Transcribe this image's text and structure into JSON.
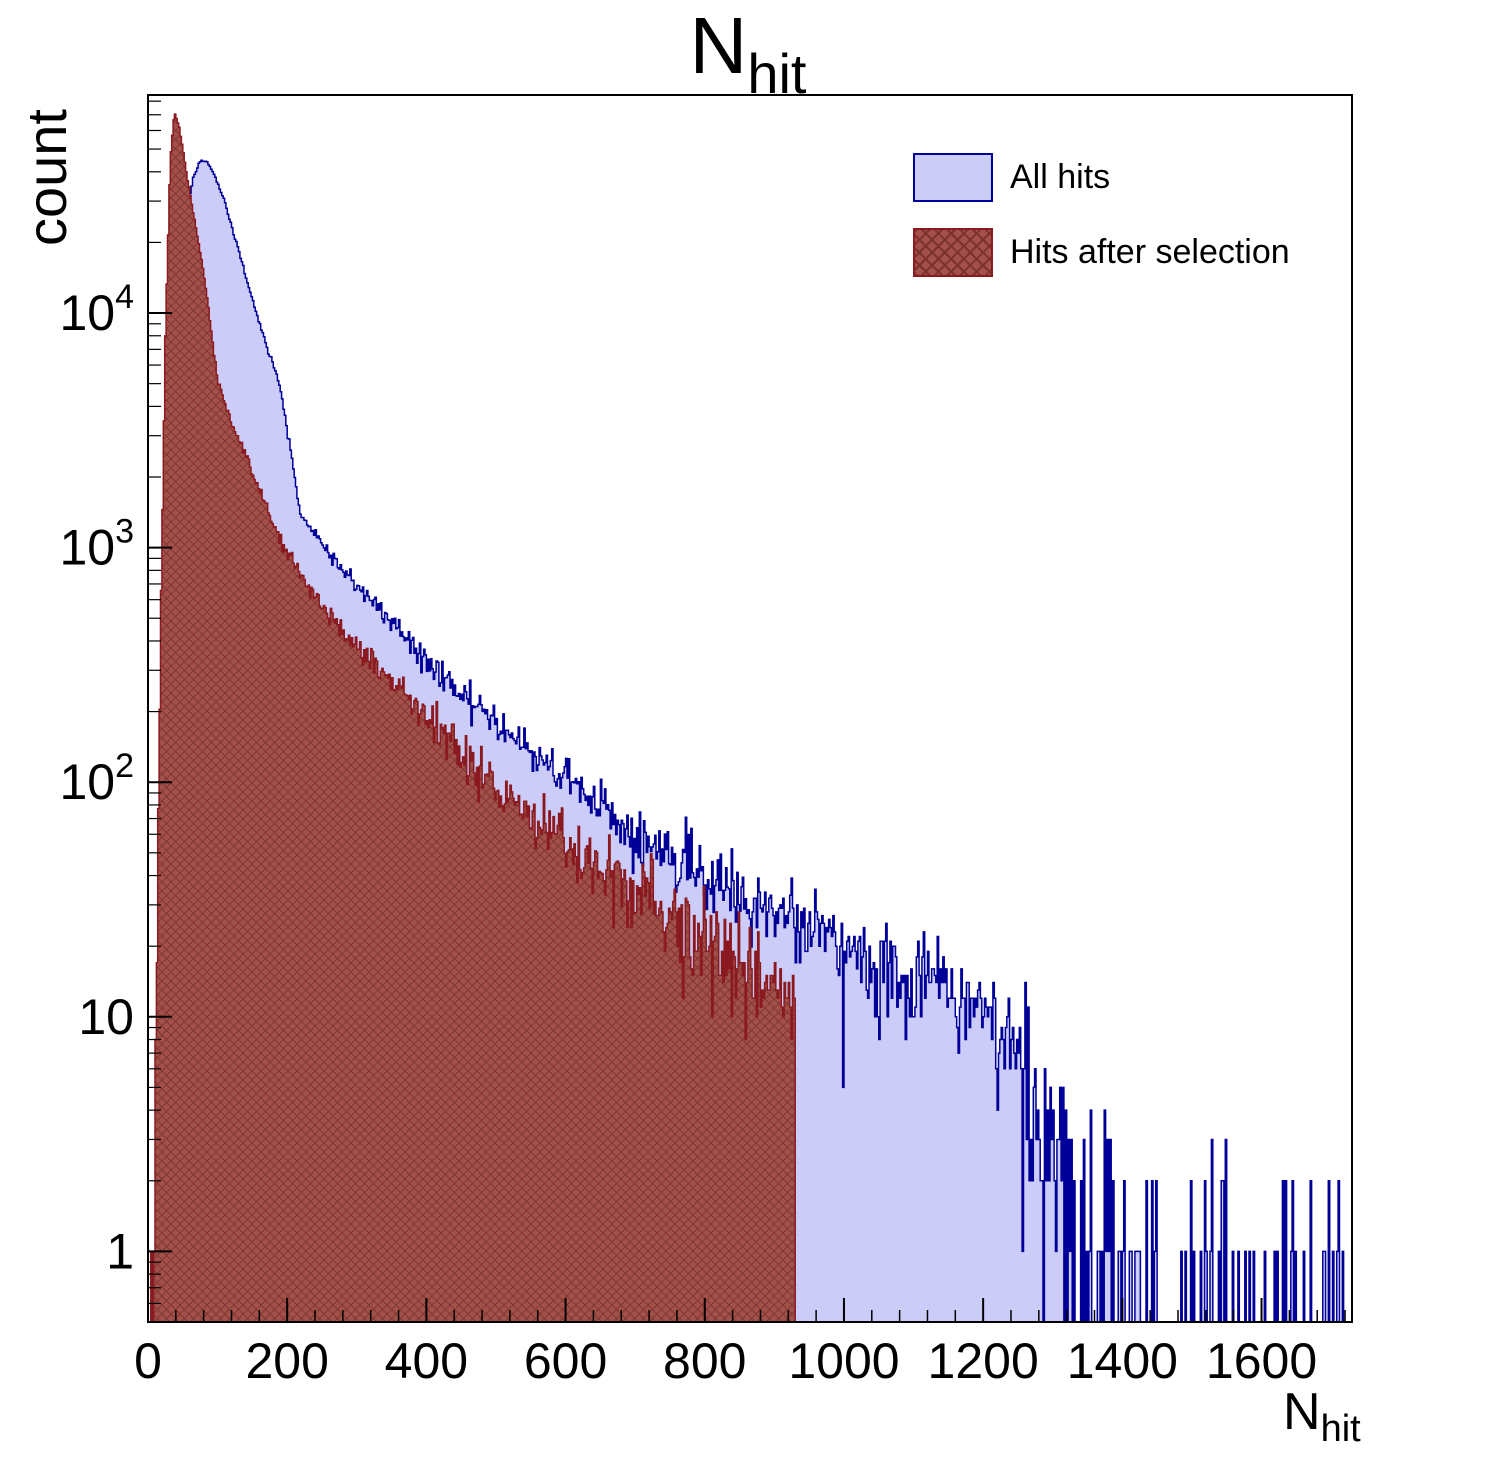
{
  "chart_data": {
    "type": "bar",
    "subtype": "histogram-overlay",
    "title_main": "N",
    "title_sub": "hit",
    "ylabel": "count",
    "xlabel_main": "N",
    "xlabel_sub": "hit",
    "y_scale": "log",
    "grid": false,
    "x_range": [
      0,
      1730
    ],
    "y_range": [
      0.5,
      85000
    ],
    "x_ticks": [
      0,
      200,
      400,
      600,
      800,
      1000,
      1200,
      1400,
      1600
    ],
    "x_minor_step": 40,
    "y_ticks": [
      {
        "value": 1,
        "label": "1"
      },
      {
        "value": 10,
        "label": "10"
      },
      {
        "value": 100,
        "base": "10",
        "exp": "2"
      },
      {
        "value": 1000,
        "base": "10",
        "exp": "3"
      },
      {
        "value": 10000,
        "base": "10",
        "exp": "4"
      }
    ],
    "series": [
      {
        "name": "All hits",
        "fill": "#ccccf8",
        "line": "#000099",
        "bin_width": 2,
        "x_start": 8,
        "x_end": 1730,
        "peak": {
          "x": 80,
          "y": 44500
        },
        "anchors_x": [
          8,
          15,
          25,
          35,
          45,
          55,
          65,
          75,
          85,
          95,
          110,
          130,
          150,
          170,
          190,
          220,
          260,
          300,
          350,
          400,
          450,
          500,
          550,
          600,
          650,
          700,
          750,
          800,
          850,
          900,
          950,
          1000,
          1050,
          1100,
          1150,
          1200,
          1240,
          1270,
          1300,
          1360,
          1450,
          1550,
          1650,
          1730
        ],
        "anchors_y": [
          0.3,
          5,
          200,
          3000,
          12000,
          25000,
          38000,
          44500,
          44000,
          39000,
          30000,
          18500,
          11500,
          7300,
          4900,
          1350,
          950,
          690,
          480,
          330,
          240,
          180,
          135,
          100,
          78,
          60,
          48,
          39,
          32,
          27,
          23,
          20,
          17,
          15,
          13,
          11,
          8,
          4.5,
          2,
          0.9,
          0.5,
          0.4,
          0.35,
          0.3
        ]
      },
      {
        "name": "Hits after selection",
        "fill": "#a25049",
        "line": "#8b1a20",
        "hatch": "#7b322d",
        "bin_width": 2,
        "x_start": 4,
        "x_end": 930,
        "peak": {
          "x": 38,
          "y": 72000
        },
        "cutoff_x": 930,
        "anchors_x": [
          4,
          12,
          18,
          25,
          32,
          38,
          45,
          55,
          65,
          80,
          100,
          120,
          140,
          170,
          200,
          250,
          300,
          350,
          400,
          450,
          500,
          550,
          600,
          650,
          700,
          750,
          800,
          850,
          900,
          930
        ],
        "anchors_y": [
          0.3,
          10,
          400,
          8000,
          45000,
          72000,
          62000,
          40000,
          27000,
          15000,
          5200,
          3400,
          2500,
          1500,
          950,
          560,
          385,
          265,
          190,
          135,
          97,
          72,
          55,
          43,
          34,
          27,
          21,
          17,
          14,
          12
        ]
      }
    ],
    "legend": {
      "position": "top-right",
      "entries": [
        {
          "label": "All hits",
          "swatch": "blue-solid"
        },
        {
          "label": "Hits after selection",
          "swatch": "red-hatched"
        }
      ]
    },
    "colors": {
      "frame": "#000000",
      "background": "#ffffff",
      "text": "#000000"
    }
  }
}
